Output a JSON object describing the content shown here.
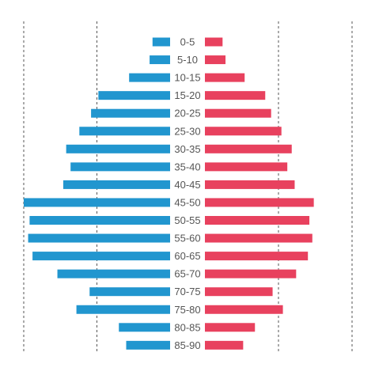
{
  "colors": {
    "left_series": "#2196cf",
    "right_series": "#e8415e",
    "gridline": "#555555",
    "label": "#555555",
    "background": "#ffffff"
  },
  "chart_data": {
    "type": "bar",
    "orientation": "horizontal",
    "layout": "population-pyramid",
    "title": "",
    "xlabel": "",
    "ylabel": "",
    "grid": "vertical dashed lines, two per side",
    "categories": [
      "0-5",
      "5-10",
      "10-15",
      "15-20",
      "20-25",
      "25-30",
      "30-35",
      "35-40",
      "40-45",
      "45-50",
      "50-55",
      "55-60",
      "60-65",
      "65-70",
      "70-75",
      "75-80",
      "80-85",
      "85-90"
    ],
    "xlim": [
      0,
      100
    ],
    "gridlines_at": [
      50,
      100
    ],
    "series": [
      {
        "side": "left",
        "values": [
          12,
          14,
          28,
          49,
          54,
          62,
          71,
          68,
          73,
          100,
          96,
          97,
          94,
          77,
          55,
          64,
          35,
          30
        ]
      },
      {
        "side": "right",
        "values": [
          12,
          14,
          27,
          41,
          45,
          52,
          59,
          56,
          61,
          74,
          71,
          73,
          70,
          62,
          46,
          53,
          34,
          26
        ]
      }
    ]
  }
}
